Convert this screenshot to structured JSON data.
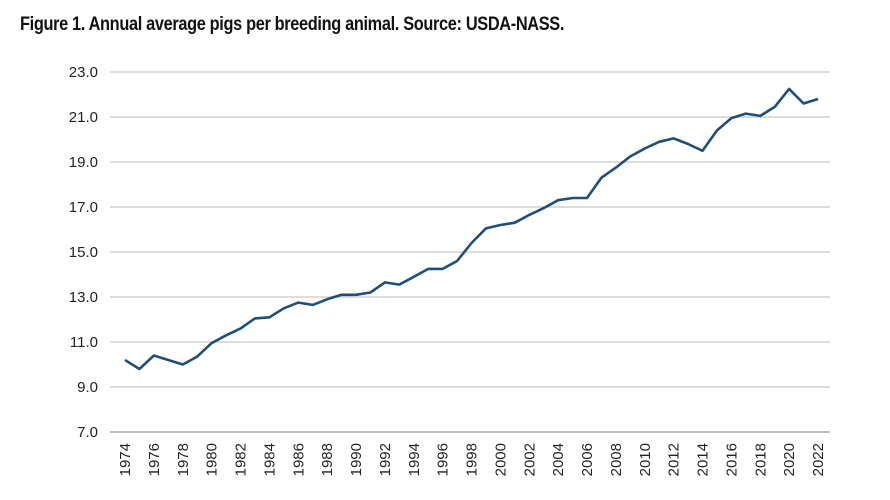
{
  "chart_data": {
    "type": "line",
    "title": "Figure 1. Annual average pigs per breeding animal. Source: USDA-NASS.",
    "xlabel": "",
    "ylabel": "",
    "ylim": [
      7.0,
      23.0
    ],
    "yticks": [
      "7.0",
      "9.0",
      "11.0",
      "13.0",
      "15.0",
      "17.0",
      "19.0",
      "21.0",
      "23.0"
    ],
    "xticks": [
      "1974",
      "1976",
      "1978",
      "1980",
      "1982",
      "1984",
      "1986",
      "1988",
      "1990",
      "1992",
      "1994",
      "1996",
      "1998",
      "2000",
      "2002",
      "2004",
      "2006",
      "2008",
      "2010",
      "2012",
      "2014",
      "2016",
      "2018",
      "2020",
      "2022"
    ],
    "grid": true,
    "line_color": "#1f4e79",
    "x": [
      1974,
      1975,
      1976,
      1977,
      1978,
      1979,
      1980,
      1981,
      1982,
      1983,
      1984,
      1985,
      1986,
      1987,
      1988,
      1989,
      1990,
      1991,
      1992,
      1993,
      1994,
      1995,
      1996,
      1997,
      1998,
      1999,
      2000,
      2001,
      2002,
      2003,
      2004,
      2005,
      2006,
      2007,
      2008,
      2009,
      2010,
      2011,
      2012,
      2013,
      2014,
      2015,
      2016,
      2017,
      2018,
      2019,
      2020,
      2021,
      2022
    ],
    "values": [
      10.2,
      9.8,
      10.4,
      10.2,
      10.0,
      10.35,
      10.95,
      11.3,
      11.6,
      12.05,
      12.1,
      12.5,
      12.75,
      12.65,
      12.9,
      13.1,
      13.1,
      13.2,
      13.65,
      13.55,
      13.9,
      14.25,
      14.25,
      14.6,
      15.4,
      16.05,
      16.2,
      16.3,
      16.65,
      16.95,
      17.3,
      17.4,
      17.4,
      18.3,
      18.75,
      19.25,
      19.6,
      19.9,
      20.05,
      19.8,
      19.5,
      20.4,
      20.95,
      21.15,
      21.05,
      21.45,
      22.25,
      21.6,
      21.8
    ]
  }
}
